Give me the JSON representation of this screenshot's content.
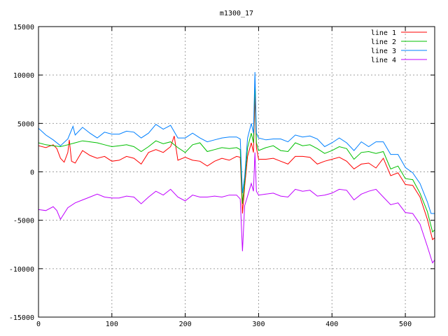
{
  "chart_data": {
    "type": "line",
    "title": "m1300_17",
    "xlabel": "",
    "ylabel": "",
    "xlim": [
      0,
      540
    ],
    "ylim": [
      -15000,
      15000
    ],
    "xticks": [
      0,
      100,
      200,
      300,
      400,
      500
    ],
    "yticks": [
      -15000,
      -10000,
      -5000,
      0,
      5000,
      10000,
      15000
    ],
    "grid": true,
    "legend_position": "top-right",
    "series": [
      {
        "name": "line 1",
        "color": "#ff0000",
        "points": [
          [
            0,
            2700
          ],
          [
            10,
            2500
          ],
          [
            20,
            2800
          ],
          [
            25,
            2400
          ],
          [
            30,
            1400
          ],
          [
            35,
            1000
          ],
          [
            40,
            2000
          ],
          [
            42,
            3300
          ],
          [
            45,
            1100
          ],
          [
            50,
            900
          ],
          [
            60,
            2200
          ],
          [
            70,
            1700
          ],
          [
            80,
            1400
          ],
          [
            90,
            1600
          ],
          [
            100,
            1100
          ],
          [
            110,
            1200
          ],
          [
            120,
            1600
          ],
          [
            130,
            1400
          ],
          [
            140,
            800
          ],
          [
            150,
            2000
          ],
          [
            160,
            2300
          ],
          [
            170,
            2000
          ],
          [
            180,
            2600
          ],
          [
            185,
            3700
          ],
          [
            190,
            1200
          ],
          [
            200,
            1500
          ],
          [
            210,
            1200
          ],
          [
            220,
            1100
          ],
          [
            230,
            600
          ],
          [
            240,
            1100
          ],
          [
            250,
            1400
          ],
          [
            260,
            1200
          ],
          [
            270,
            1600
          ],
          [
            275,
            1500
          ],
          [
            278,
            -4300
          ],
          [
            281,
            -1500
          ],
          [
            285,
            1600
          ],
          [
            290,
            3000
          ],
          [
            293,
            2000
          ],
          [
            295,
            8000
          ],
          [
            297,
            2500
          ],
          [
            300,
            1300
          ],
          [
            310,
            1300
          ],
          [
            320,
            1400
          ],
          [
            330,
            1100
          ],
          [
            340,
            800
          ],
          [
            350,
            1600
          ],
          [
            360,
            1600
          ],
          [
            370,
            1500
          ],
          [
            380,
            800
          ],
          [
            390,
            1100
          ],
          [
            400,
            1300
          ],
          [
            410,
            1500
          ],
          [
            420,
            1100
          ],
          [
            430,
            300
          ],
          [
            440,
            800
          ],
          [
            450,
            900
          ],
          [
            460,
            400
          ],
          [
            470,
            1400
          ],
          [
            480,
            -400
          ],
          [
            490,
            -100
          ],
          [
            500,
            -1300
          ],
          [
            510,
            -1400
          ],
          [
            520,
            -2600
          ],
          [
            530,
            -4900
          ],
          [
            537,
            -7000
          ],
          [
            540,
            -6800
          ]
        ]
      },
      {
        "name": "line 2",
        "color": "#00c000",
        "points": [
          [
            0,
            3000
          ],
          [
            10,
            2800
          ],
          [
            20,
            2700
          ],
          [
            30,
            2600
          ],
          [
            40,
            2800
          ],
          [
            50,
            3000
          ],
          [
            60,
            3200
          ],
          [
            70,
            3100
          ],
          [
            80,
            3000
          ],
          [
            90,
            2800
          ],
          [
            100,
            2600
          ],
          [
            110,
            2700
          ],
          [
            120,
            2800
          ],
          [
            130,
            2600
          ],
          [
            140,
            2100
          ],
          [
            150,
            2600
          ],
          [
            160,
            3200
          ],
          [
            170,
            2900
          ],
          [
            180,
            3100
          ],
          [
            190,
            2500
          ],
          [
            200,
            2000
          ],
          [
            210,
            2800
          ],
          [
            220,
            3000
          ],
          [
            230,
            2100
          ],
          [
            240,
            2300
          ],
          [
            250,
            2500
          ],
          [
            260,
            2400
          ],
          [
            270,
            2500
          ],
          [
            275,
            2300
          ],
          [
            278,
            -3300
          ],
          [
            281,
            -1000
          ],
          [
            285,
            2500
          ],
          [
            290,
            4000
          ],
          [
            293,
            3000
          ],
          [
            295,
            9500
          ],
          [
            297,
            3000
          ],
          [
            300,
            2200
          ],
          [
            310,
            2500
          ],
          [
            320,
            2700
          ],
          [
            330,
            2200
          ],
          [
            340,
            2100
          ],
          [
            350,
            3000
          ],
          [
            360,
            2700
          ],
          [
            370,
            2800
          ],
          [
            380,
            2400
          ],
          [
            390,
            1900
          ],
          [
            400,
            2200
          ],
          [
            410,
            2600
          ],
          [
            420,
            2400
          ],
          [
            430,
            1300
          ],
          [
            440,
            2000
          ],
          [
            450,
            2100
          ],
          [
            460,
            1900
          ],
          [
            470,
            2100
          ],
          [
            480,
            300
          ],
          [
            490,
            600
          ],
          [
            500,
            -700
          ],
          [
            510,
            -800
          ],
          [
            520,
            -2200
          ],
          [
            530,
            -4100
          ],
          [
            537,
            -6200
          ],
          [
            540,
            -6000
          ]
        ]
      },
      {
        "name": "line 3",
        "color": "#0080ff",
        "points": [
          [
            0,
            4500
          ],
          [
            10,
            3800
          ],
          [
            20,
            3300
          ],
          [
            30,
            2700
          ],
          [
            40,
            3400
          ],
          [
            47,
            4700
          ],
          [
            50,
            3800
          ],
          [
            60,
            4600
          ],
          [
            70,
            4000
          ],
          [
            80,
            3500
          ],
          [
            90,
            4100
          ],
          [
            100,
            3900
          ],
          [
            110,
            3900
          ],
          [
            120,
            4200
          ],
          [
            130,
            4100
          ],
          [
            140,
            3500
          ],
          [
            150,
            4000
          ],
          [
            160,
            4900
          ],
          [
            170,
            4400
          ],
          [
            180,
            4800
          ],
          [
            190,
            3500
          ],
          [
            200,
            3500
          ],
          [
            210,
            4000
          ],
          [
            220,
            3500
          ],
          [
            230,
            3100
          ],
          [
            240,
            3300
          ],
          [
            250,
            3500
          ],
          [
            260,
            3600
          ],
          [
            270,
            3600
          ],
          [
            275,
            3400
          ],
          [
            278,
            -2200
          ],
          [
            281,
            -500
          ],
          [
            285,
            3500
          ],
          [
            290,
            5000
          ],
          [
            293,
            4000
          ],
          [
            295,
            10300
          ],
          [
            297,
            4000
          ],
          [
            300,
            3500
          ],
          [
            310,
            3300
          ],
          [
            320,
            3400
          ],
          [
            330,
            3400
          ],
          [
            340,
            3100
          ],
          [
            350,
            3800
          ],
          [
            360,
            3600
          ],
          [
            370,
            3700
          ],
          [
            380,
            3400
          ],
          [
            390,
            2600
          ],
          [
            400,
            3000
          ],
          [
            410,
            3500
          ],
          [
            420,
            3000
          ],
          [
            430,
            2200
          ],
          [
            440,
            3100
          ],
          [
            450,
            2600
          ],
          [
            460,
            3100
          ],
          [
            470,
            3100
          ],
          [
            480,
            1800
          ],
          [
            490,
            1800
          ],
          [
            500,
            450
          ],
          [
            510,
            -100
          ],
          [
            520,
            -1200
          ],
          [
            530,
            -3100
          ],
          [
            535,
            -4300
          ],
          [
            540,
            -4300
          ]
        ]
      },
      {
        "name": "line 4",
        "color": "#c000ff",
        "points": [
          [
            0,
            -3900
          ],
          [
            10,
            -4000
          ],
          [
            20,
            -3600
          ],
          [
            25,
            -4000
          ],
          [
            30,
            -4900
          ],
          [
            40,
            -3700
          ],
          [
            50,
            -3200
          ],
          [
            60,
            -2900
          ],
          [
            70,
            -2600
          ],
          [
            80,
            -2300
          ],
          [
            90,
            -2600
          ],
          [
            100,
            -2700
          ],
          [
            110,
            -2700
          ],
          [
            120,
            -2500
          ],
          [
            130,
            -2600
          ],
          [
            140,
            -3300
          ],
          [
            150,
            -2600
          ],
          [
            160,
            -2000
          ],
          [
            170,
            -2400
          ],
          [
            180,
            -1800
          ],
          [
            190,
            -2600
          ],
          [
            200,
            -3000
          ],
          [
            210,
            -2400
          ],
          [
            220,
            -2600
          ],
          [
            230,
            -2600
          ],
          [
            240,
            -2500
          ],
          [
            250,
            -2600
          ],
          [
            260,
            -2400
          ],
          [
            270,
            -2400
          ],
          [
            275,
            -2800
          ],
          [
            278,
            -8200
          ],
          [
            281,
            -3500
          ],
          [
            285,
            -2500
          ],
          [
            290,
            -1200
          ],
          [
            293,
            -2000
          ],
          [
            295,
            2000
          ],
          [
            297,
            -2000
          ],
          [
            300,
            -2400
          ],
          [
            310,
            -2300
          ],
          [
            320,
            -2200
          ],
          [
            330,
            -2500
          ],
          [
            340,
            -2600
          ],
          [
            350,
            -1800
          ],
          [
            360,
            -2000
          ],
          [
            370,
            -1900
          ],
          [
            380,
            -2500
          ],
          [
            390,
            -2400
          ],
          [
            400,
            -2200
          ],
          [
            410,
            -1800
          ],
          [
            420,
            -1900
          ],
          [
            430,
            -2900
          ],
          [
            440,
            -2300
          ],
          [
            450,
            -2000
          ],
          [
            460,
            -1800
          ],
          [
            470,
            -2600
          ],
          [
            480,
            -3400
          ],
          [
            490,
            -3200
          ],
          [
            500,
            -4200
          ],
          [
            510,
            -4300
          ],
          [
            520,
            -5400
          ],
          [
            530,
            -7700
          ],
          [
            537,
            -9400
          ],
          [
            540,
            -9100
          ]
        ]
      }
    ]
  }
}
